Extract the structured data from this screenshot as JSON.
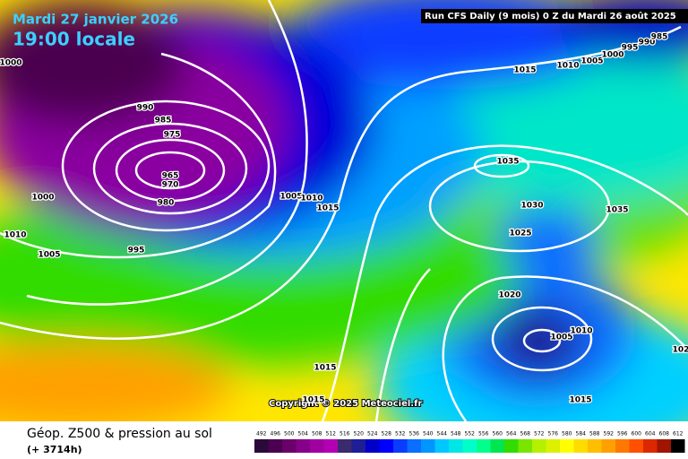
{
  "header": {
    "date": "Mardi 27 janvier 2026",
    "time": "19:00 locale",
    "run": "Run CFS Daily (9 mois) 0 Z du Mardi 26 août 2025"
  },
  "copyright": "Copyright © 2025 Meteociel.fr",
  "isobar_labels": [
    "1000",
    "990",
    "985",
    "975",
    "965",
    "970",
    "980",
    "1000",
    "1010",
    "1005",
    "995",
    "1005",
    "1010",
    "1015",
    "1015",
    "1010",
    "1005",
    "1000",
    "995",
    "990",
    "985",
    "1035",
    "1030",
    "1035",
    "1025",
    "1020",
    "1005",
    "1010",
    "102",
    "1015",
    "1015",
    "1015"
  ],
  "footer": {
    "title": "Géop. Z500 & pression au sol",
    "lead": "(+ 3714h)"
  },
  "scale": {
    "labels": [
      492,
      496,
      500,
      504,
      508,
      512,
      516,
      520,
      524,
      528,
      532,
      536,
      540,
      544,
      548,
      552,
      556,
      560,
      564,
      568,
      572,
      576,
      580,
      584,
      588,
      592,
      596,
      600,
      604,
      608,
      612
    ],
    "colors": [
      "#2a0a3a",
      "#4b0050",
      "#6a006a",
      "#86008a",
      "#a000a0",
      "#b400b4",
      "#3a2a6e",
      "#1e1e96",
      "#0000c8",
      "#0000ff",
      "#0a3cff",
      "#0a6eff",
      "#0096ff",
      "#00c8ff",
      "#00e6e6",
      "#00ffc8",
      "#00ff8c",
      "#00e650",
      "#32dc00",
      "#78e600",
      "#b4f000",
      "#dcf000",
      "#ffff00",
      "#ffdc00",
      "#ffbe00",
      "#ffa000",
      "#ff7800",
      "#ff5000",
      "#dc2800",
      "#a01400",
      "#000000"
    ]
  }
}
